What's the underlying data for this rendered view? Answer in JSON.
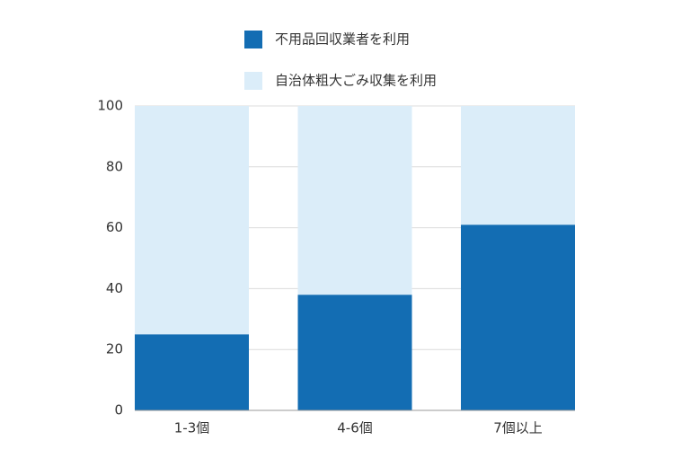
{
  "chart_data": {
    "type": "stacked_bar",
    "categories": [
      "1-3個",
      "4-6個",
      "7個以上"
    ],
    "series": [
      {
        "name": "不用品回収業者を利用",
        "color": "#136db3",
        "values": [
          25,
          38,
          61
        ]
      },
      {
        "name": "自治体粗大ごみ収集を利用",
        "color": "#dbedf9",
        "values": [
          75,
          62,
          39
        ]
      }
    ],
    "ylim": [
      0,
      100
    ],
    "yticks": [
      0,
      20,
      40,
      60,
      80,
      100
    ],
    "grid": true
  }
}
